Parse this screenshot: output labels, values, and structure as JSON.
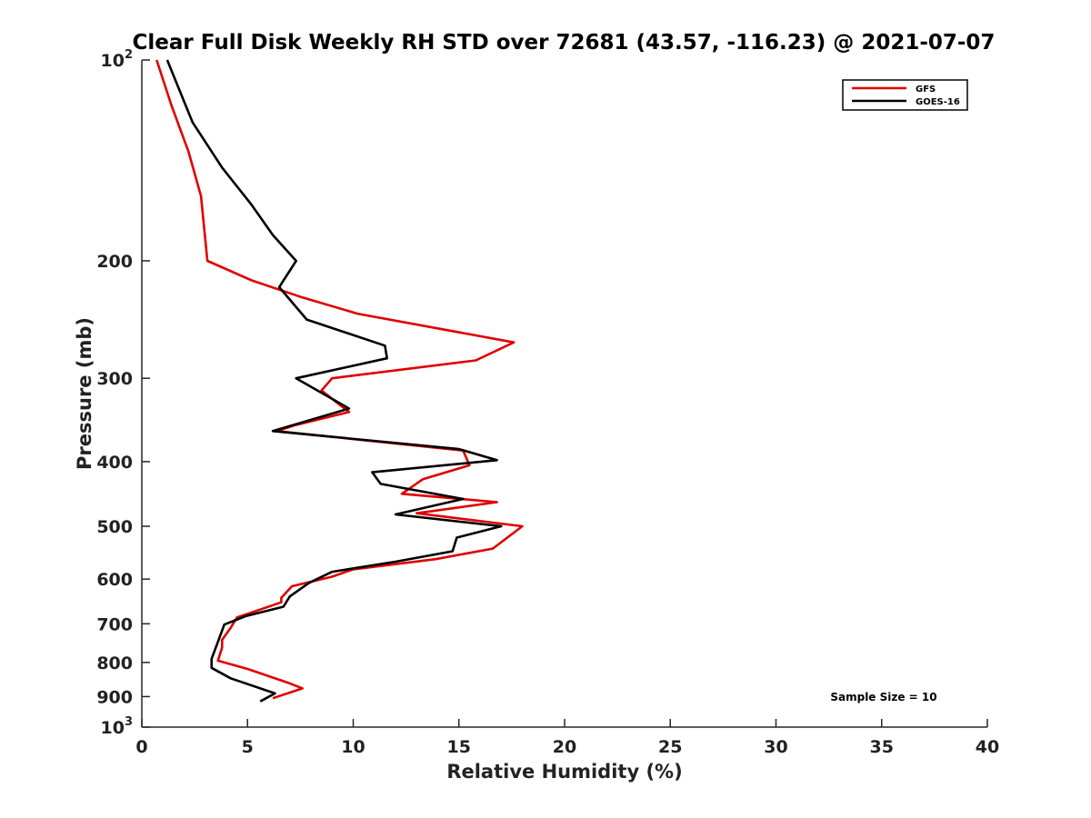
{
  "chart_data": {
    "type": "line",
    "title": "Clear Full Disk Weekly RH STD over 72681 (43.57, -116.23) @ 2021-07-07",
    "xlabel": "Relative Humidity (%)",
    "ylabel": "Pressure (mb)",
    "xlim": [
      0,
      40
    ],
    "ylim": [
      100,
      1000
    ],
    "yscale": "log",
    "y_reversed": true,
    "grid": false,
    "legend_position": "top-right",
    "x_ticks": [
      0,
      5,
      10,
      15,
      20,
      25,
      30,
      35,
      40
    ],
    "y_ticks": [
      {
        "value": 100,
        "base": "10",
        "exp": "2"
      },
      {
        "value": 200,
        "label": "200"
      },
      {
        "value": 300,
        "label": "300"
      },
      {
        "value": 400,
        "label": "400"
      },
      {
        "value": 500,
        "label": "500"
      },
      {
        "value": 600,
        "label": "600"
      },
      {
        "value": 700,
        "label": "700"
      },
      {
        "value": 800,
        "label": "800"
      },
      {
        "value": 900,
        "label": "900"
      },
      {
        "value": 1000,
        "base": "10",
        "exp": "3"
      }
    ],
    "series": [
      {
        "name": "GFS",
        "color": "#e00000",
        "points": [
          [
            0.7,
            100
          ],
          [
            1.4,
            117
          ],
          [
            2.2,
            137
          ],
          [
            2.8,
            160
          ],
          [
            3.1,
            200
          ],
          [
            5.2,
            214
          ],
          [
            7.6,
            227
          ],
          [
            10.2,
            240
          ],
          [
            17.6,
            265
          ],
          [
            15.8,
            282
          ],
          [
            9.0,
            300
          ],
          [
            8.5,
            313
          ],
          [
            9.8,
            337
          ],
          [
            7.2,
            353
          ],
          [
            6.4,
            360
          ],
          [
            15.2,
            385
          ],
          [
            15.5,
            405
          ],
          [
            13.3,
            425
          ],
          [
            12.3,
            447
          ],
          [
            16.8,
            460
          ],
          [
            13.0,
            478
          ],
          [
            18.0,
            500
          ],
          [
            16.6,
            540
          ],
          [
            13.9,
            560
          ],
          [
            10.0,
            580
          ],
          [
            9.0,
            595
          ],
          [
            7.1,
            615
          ],
          [
            6.6,
            640
          ],
          [
            6.6,
            650
          ],
          [
            4.5,
            685
          ],
          [
            4.2,
            710
          ],
          [
            3.8,
            740
          ],
          [
            3.8,
            760
          ],
          [
            3.6,
            795
          ],
          [
            5.0,
            818
          ],
          [
            7.0,
            860
          ],
          [
            7.6,
            875
          ],
          [
            6.2,
            905
          ]
        ]
      },
      {
        "name": "GOES-16",
        "color": "#000000",
        "points": [
          [
            1.2,
            100
          ],
          [
            2.4,
            124
          ],
          [
            3.8,
            145
          ],
          [
            5.2,
            165
          ],
          [
            6.2,
            183
          ],
          [
            7.3,
            200
          ],
          [
            6.5,
            219
          ],
          [
            7.8,
            245
          ],
          [
            11.5,
            268
          ],
          [
            11.6,
            280
          ],
          [
            7.3,
            300
          ],
          [
            9.8,
            333
          ],
          [
            6.2,
            360
          ],
          [
            15.0,
            383
          ],
          [
            16.8,
            398
          ],
          [
            10.9,
            415
          ],
          [
            11.3,
            432
          ],
          [
            15.2,
            455
          ],
          [
            12.0,
            480
          ],
          [
            17.0,
            500
          ],
          [
            14.9,
            520
          ],
          [
            14.7,
            545
          ],
          [
            12.0,
            565
          ],
          [
            9.0,
            585
          ],
          [
            7.9,
            608
          ],
          [
            7.0,
            637
          ],
          [
            6.7,
            660
          ],
          [
            4.9,
            682
          ],
          [
            3.9,
            702
          ],
          [
            3.6,
            745
          ],
          [
            3.3,
            790
          ],
          [
            3.3,
            815
          ],
          [
            4.2,
            845
          ],
          [
            6.3,
            890
          ],
          [
            5.6,
            915
          ]
        ]
      }
    ],
    "annotation": "Sample Size = 10"
  }
}
